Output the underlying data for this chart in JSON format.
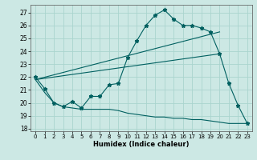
{
  "xlabel": "Humidex (Indice chaleur)",
  "background_color": "#cce8e4",
  "grid_color": "#aad4ce",
  "line_color": "#006060",
  "xlim": [
    -0.5,
    23.5
  ],
  "ylim": [
    17.8,
    27.6
  ],
  "yticks": [
    18,
    19,
    20,
    21,
    22,
    23,
    24,
    25,
    26,
    27
  ],
  "xticks": [
    0,
    1,
    2,
    3,
    4,
    5,
    6,
    7,
    8,
    9,
    10,
    11,
    12,
    13,
    14,
    15,
    16,
    17,
    18,
    19,
    20,
    21,
    22,
    23
  ],
  "series": [
    {
      "x": [
        0,
        1,
        2,
        3,
        4,
        5,
        6,
        7,
        8,
        9,
        10,
        11,
        12,
        13,
        14,
        15,
        16,
        17,
        18,
        19,
        20,
        21,
        22,
        23
      ],
      "y": [
        22.0,
        21.1,
        20.0,
        19.7,
        20.1,
        19.6,
        20.5,
        20.5,
        21.4,
        21.5,
        23.5,
        24.8,
        26.0,
        26.8,
        27.2,
        26.5,
        26.0,
        26.0,
        25.8,
        25.5,
        23.8,
        21.5,
        19.8,
        18.4
      ],
      "marker": "*"
    },
    {
      "x": [
        0,
        20
      ],
      "y": [
        21.8,
        25.5
      ]
    },
    {
      "x": [
        0,
        20
      ],
      "y": [
        21.8,
        23.8
      ]
    },
    {
      "x": [
        0,
        1,
        2,
        3,
        4,
        5,
        6,
        7,
        8,
        9,
        10,
        11,
        12,
        13,
        14,
        15,
        16,
        17,
        18,
        19,
        20,
        21,
        22,
        23
      ],
      "y": [
        21.8,
        20.8,
        20.0,
        19.7,
        19.6,
        19.5,
        19.5,
        19.5,
        19.5,
        19.4,
        19.2,
        19.1,
        19.0,
        18.9,
        18.9,
        18.8,
        18.8,
        18.7,
        18.7,
        18.6,
        18.5,
        18.4,
        18.4,
        18.4
      ]
    }
  ]
}
